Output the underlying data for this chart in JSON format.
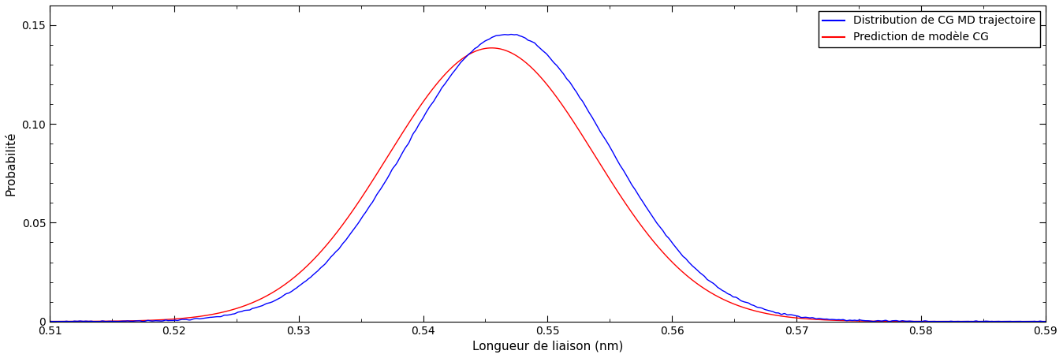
{
  "xlabel": "Longueur de liaison (nm)",
  "ylabel": "Probabilité",
  "xlim": [
    0.51,
    0.59
  ],
  "ylim": [
    0.0,
    0.16
  ],
  "xticks": [
    0.51,
    0.52,
    0.53,
    0.54,
    0.55,
    0.56,
    0.57,
    0.58,
    0.59
  ],
  "yticks": [
    0.0,
    0.05,
    0.1,
    0.15
  ],
  "legend_labels": [
    "Distribution de CG MD trajectoire",
    "Prediction de modèle CG"
  ],
  "blue_color": "#0000FF",
  "red_color": "#FF0000",
  "blue_mean": 0.5468,
  "blue_std": 0.0082,
  "red_mean": 0.5455,
  "red_std": 0.0083,
  "blue_peak": 0.1455,
  "red_peak": 0.1385,
  "background_color": "#FFFFFF",
  "figsize": [
    13.48,
    4.54
  ],
  "dpi": 100
}
